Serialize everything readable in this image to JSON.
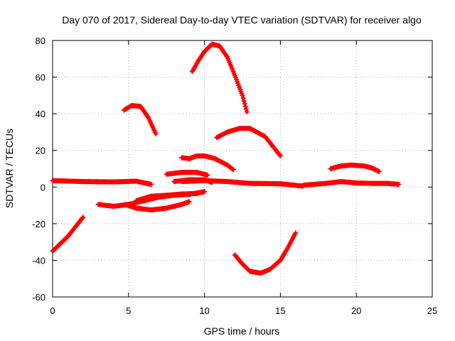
{
  "chart_data": {
    "type": "scatter",
    "title": "Day 070 of 2017, Sidereal Day-to-day VTEC variation (SDTVAR) for receiver algo",
    "xlabel": "GPS time / hours",
    "ylabel": "SDTVAR / TECUs",
    "xlim": [
      0,
      25
    ],
    "ylim": [
      -60,
      80
    ],
    "xticks": [
      "0",
      "5",
      "10",
      "15",
      "20",
      "25"
    ],
    "yticks": [
      "-60",
      "-40",
      "-20",
      "0",
      "20",
      "40",
      "60",
      "80"
    ],
    "grid": true,
    "marker": "plus",
    "colors": {
      "series": "#ff0000",
      "grid": "#b0b0b0",
      "axes": "#000000"
    },
    "series": [
      {
        "values": [
          [
            0.0,
            3.5
          ],
          [
            2.0,
            3.0
          ],
          [
            4.0,
            2.8
          ],
          [
            5.5,
            3.2
          ],
          [
            6.5,
            1.5
          ]
        ]
      },
      {
        "values": [
          [
            8.5,
            3.0
          ],
          [
            10.0,
            3.5
          ],
          [
            11.5,
            3.0
          ],
          [
            13.0,
            2.0
          ],
          [
            15.0,
            1.8
          ],
          [
            16.5,
            0.5
          ]
        ]
      },
      {
        "values": [
          [
            16.5,
            1.0
          ],
          [
            18.0,
            2.0
          ],
          [
            19.0,
            3.0
          ],
          [
            20.0,
            2.2
          ],
          [
            21.0,
            2.0
          ],
          [
            22.0,
            2.0
          ],
          [
            22.8,
            1.5
          ]
        ]
      },
      {
        "values": [
          [
            0.0,
            -35.0
          ],
          [
            1.0,
            -27.0
          ],
          [
            2.0,
            -16.5
          ]
        ]
      },
      {
        "values": [
          [
            3.0,
            -9.5
          ],
          [
            4.0,
            -10.5
          ],
          [
            5.0,
            -9.5
          ],
          [
            6.0,
            -7.5
          ],
          [
            7.0,
            -5.5
          ],
          [
            8.0,
            -4.5
          ],
          [
            9.0,
            -4.0
          ],
          [
            10.0,
            -2.5
          ]
        ]
      },
      {
        "values": [
          [
            4.8,
            -9.5
          ],
          [
            5.5,
            -11.5
          ],
          [
            6.5,
            -12.5
          ],
          [
            7.5,
            -11.5
          ],
          [
            8.5,
            -9.5
          ],
          [
            9.0,
            -8.0
          ]
        ]
      },
      {
        "values": [
          [
            5.5,
            -7.5
          ],
          [
            6.5,
            -5.0
          ],
          [
            7.5,
            -4.5
          ],
          [
            8.5,
            -3.8
          ],
          [
            9.5,
            -3.5
          ],
          [
            10.0,
            -2.5
          ]
        ]
      },
      {
        "values": [
          [
            4.7,
            42.0
          ],
          [
            5.2,
            44.5
          ],
          [
            5.8,
            44.0
          ],
          [
            6.3,
            38.0
          ],
          [
            6.8,
            29.0
          ]
        ]
      },
      {
        "values": [
          [
            9.2,
            63.0
          ],
          [
            9.6,
            69.0
          ],
          [
            10.0,
            74.0
          ],
          [
            10.5,
            78.0
          ],
          [
            11.0,
            77.0
          ],
          [
            11.5,
            71.0
          ],
          [
            12.0,
            61.0
          ],
          [
            12.5,
            50.0
          ],
          [
            12.8,
            41.0
          ]
        ]
      },
      {
        "values": [
          [
            10.8,
            27.0
          ],
          [
            11.5,
            30.0
          ],
          [
            12.3,
            32.0
          ],
          [
            13.0,
            32.0
          ],
          [
            14.0,
            27.5
          ],
          [
            15.0,
            17.0
          ]
        ]
      },
      {
        "values": [
          [
            8.5,
            16.0
          ],
          [
            9.0,
            15.5
          ],
          [
            9.5,
            17.0
          ],
          [
            10.0,
            17.0
          ],
          [
            10.7,
            15.5
          ],
          [
            11.5,
            12.0
          ],
          [
            11.9,
            9.5
          ]
        ]
      },
      {
        "values": [
          [
            7.5,
            7.0
          ],
          [
            8.5,
            8.0
          ],
          [
            9.5,
            8.0
          ],
          [
            10.2,
            6.5
          ]
        ]
      },
      {
        "values": [
          [
            8.0,
            3.0
          ],
          [
            9.0,
            4.0
          ],
          [
            10.0,
            4.0
          ],
          [
            10.5,
            2.5
          ]
        ]
      },
      {
        "values": [
          [
            12.0,
            -37.0
          ],
          [
            12.5,
            -42.0
          ],
          [
            13.0,
            -46.0
          ],
          [
            13.7,
            -47.0
          ],
          [
            14.3,
            -45.0
          ],
          [
            15.0,
            -40.0
          ],
          [
            15.5,
            -33.0
          ],
          [
            16.0,
            -25.0
          ]
        ]
      },
      {
        "values": [
          [
            18.3,
            10.0
          ],
          [
            19.0,
            11.5
          ],
          [
            19.7,
            12.0
          ],
          [
            20.5,
            11.5
          ],
          [
            21.0,
            10.5
          ],
          [
            21.5,
            8.5
          ]
        ]
      }
    ]
  }
}
